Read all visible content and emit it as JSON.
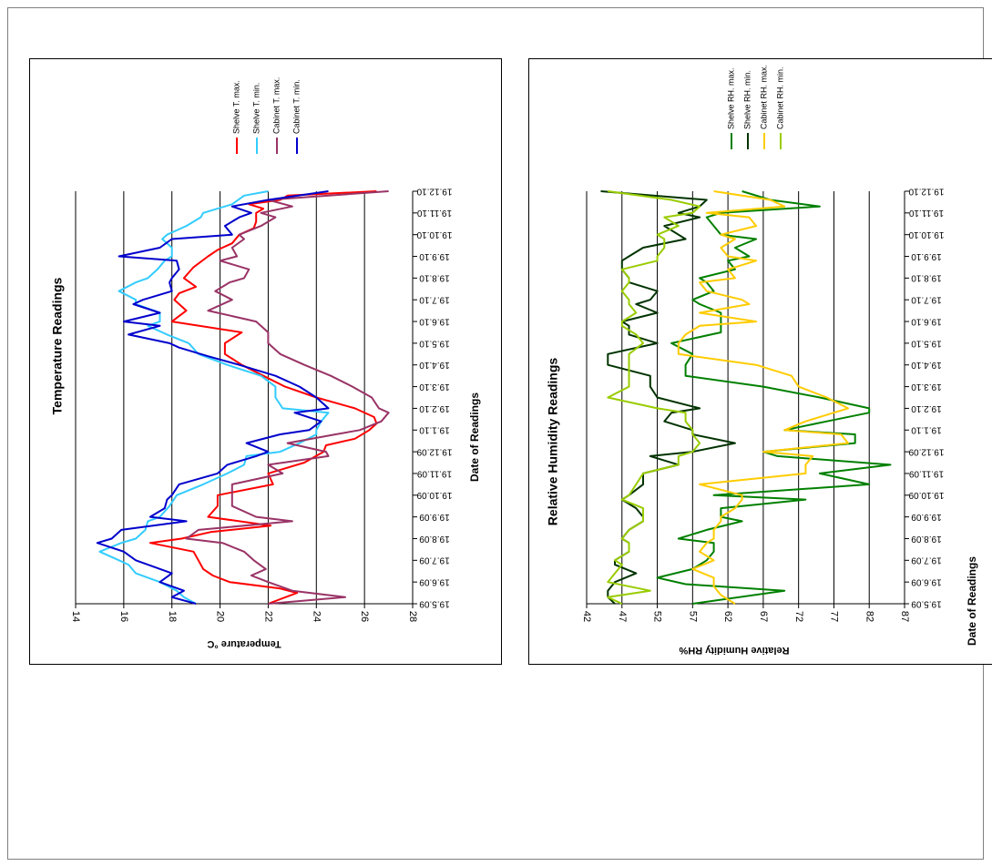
{
  "chart_data": [
    {
      "type": "line",
      "title": "Temperature Readings",
      "xlabel": "Date of Readings",
      "ylabel": "Temperature °C",
      "ylim": [
        14,
        28
      ],
      "yticks": [
        14,
        16,
        18,
        20,
        22,
        24,
        26,
        28
      ],
      "xticks": [
        "19.5.09",
        "19.6.09",
        "19.7.09",
        "19.8.09",
        "19.9.09",
        "19.10.09",
        "19.11.09",
        "19.12.09",
        "19.1.10",
        "19.2.10",
        "19.3.10",
        "19.4.10",
        "19.5.10",
        "19.6.10",
        "19.7.10",
        "19.8.10",
        "19.9.10",
        "19.10.10",
        "19.11.10",
        "19.12.10"
      ],
      "grid": "horizontal",
      "orientation": "rotated-90-clockwise",
      "legend_position": "right",
      "series": [
        {
          "name": "Shelve T. max.",
          "color": "#ff0000",
          "x": [
            0,
            0.5,
            0.7,
            1,
            1.3,
            1.6,
            2,
            2.4,
            2.8,
            3,
            3.3,
            3.6,
            4,
            4.5,
            5,
            5.5,
            6,
            6.5,
            7,
            7.3,
            7.6,
            8,
            8.3,
            8.6,
            9,
            9.5,
            10,
            10.5,
            11,
            11.5,
            12,
            12.5,
            13,
            13.5,
            14,
            14.3,
            14.6,
            15,
            15.5,
            16,
            16.3,
            16.6,
            17,
            17.3,
            17.6,
            18,
            18.2,
            18.4,
            18.6,
            18.8,
            19
          ],
          "y": [
            22,
            23.2,
            22.5,
            20.4,
            19.7,
            19.3,
            19.1,
            18.9,
            17.1,
            18.4,
            19.6,
            22.1,
            19.5,
            19.9,
            19.9,
            22.2,
            22,
            23.5,
            24.3,
            24.4,
            25.6,
            26.2,
            26.5,
            26.4,
            25.6,
            24,
            22.7,
            21.8,
            20.9,
            20.2,
            20.2,
            20.9,
            18,
            18.6,
            18.1,
            18.3,
            19,
            18.5,
            18.9,
            19.5,
            19.9,
            20.5,
            20.8,
            21.4,
            21.5,
            21.5,
            21.8,
            21.2,
            22.5,
            22.8,
            26.5
          ]
        },
        {
          "name": "Shelve T. min.",
          "color": "#33ccff",
          "x": [
            0,
            0.3,
            0.6,
            1,
            1.4,
            1.8,
            2,
            2.4,
            2.8,
            3,
            3.4,
            3.8,
            4,
            4.5,
            5,
            5.5,
            6,
            6.4,
            6.8,
            7,
            7.4,
            7.8,
            8,
            8.4,
            8.8,
            9,
            9.5,
            10,
            10.5,
            11,
            11.5,
            12,
            12.4,
            12.8,
            13,
            13.4,
            13.8,
            14,
            14.4,
            14.8,
            15,
            15.4,
            15.8,
            16,
            16.4,
            16.8,
            17,
            17.4,
            17.8,
            18,
            18.4,
            18.8,
            19
          ],
          "y": [
            19,
            18.5,
            18.2,
            17.5,
            16.5,
            16.2,
            15.8,
            15,
            15.9,
            16.5,
            16.9,
            17,
            17.5,
            17.9,
            18.2,
            19.3,
            20.3,
            21,
            21.1,
            22.5,
            23.3,
            24,
            24,
            24.2,
            24.5,
            22.6,
            22.3,
            22.3,
            21.7,
            20.3,
            19.1,
            18.7,
            17.8,
            17,
            17.5,
            17.5,
            16.5,
            16.5,
            15.8,
            16.5,
            17,
            17.4,
            17.7,
            18,
            18,
            17.6,
            17.8,
            18.6,
            19.2,
            19.3,
            20.5,
            21,
            22
          ]
        },
        {
          "name": "Cabinet T. max.",
          "color": "#993366",
          "x": [
            0,
            0.3,
            0.6,
            1,
            1.3,
            1.6,
            2,
            2.4,
            2.8,
            3,
            3.4,
            3.8,
            4,
            4.5,
            5,
            5.5,
            6,
            6.4,
            6.8,
            7,
            7.4,
            7.8,
            8,
            8.4,
            8.8,
            9,
            9.5,
            10,
            10.5,
            11,
            11.5,
            12,
            12.5,
            13,
            13.5,
            14,
            14.4,
            14.8,
            15,
            15.4,
            15.8,
            16,
            16.4,
            16.8,
            17,
            17.4,
            17.8,
            18,
            18.3,
            18.6,
            19
          ],
          "y": [
            22,
            25.2,
            23,
            22,
            21.3,
            21.9,
            21.4,
            21,
            20.1,
            18.6,
            19.1,
            23,
            21.5,
            20.5,
            20.5,
            20.5,
            22.6,
            22,
            24.5,
            24.4,
            22.8,
            24.8,
            25.8,
            26.7,
            27,
            26.6,
            26.3,
            25.5,
            24.6,
            23.5,
            22.5,
            22,
            22,
            21.5,
            19.5,
            20.5,
            19.8,
            20.4,
            21,
            21.2,
            20,
            20.7,
            20.5,
            21,
            20.8,
            21.7,
            22.3,
            21.7,
            23,
            22,
            27
          ]
        },
        {
          "name": "Cabinet T. min.",
          "color": "#0000cc",
          "x": [
            0,
            0.3,
            0.6,
            1,
            1.4,
            1.8,
            2,
            2.4,
            2.8,
            3,
            3.4,
            3.8,
            4,
            4.4,
            4.8,
            5,
            5.5,
            6,
            6.4,
            6.8,
            7,
            7.4,
            7.8,
            8,
            8.4,
            8.8,
            9,
            9.5,
            10,
            10.5,
            11,
            11.4,
            11.8,
            12,
            12.4,
            12.8,
            13,
            13.4,
            13.8,
            14,
            14.4,
            14.8,
            15,
            15.4,
            15.8,
            16,
            16.4,
            16.8,
            17,
            17.4,
            17.8,
            18,
            18.3,
            18.6,
            19
          ],
          "y": [
            19,
            18,
            18.5,
            17.5,
            18,
            17,
            16.5,
            16,
            14.9,
            15.5,
            15.9,
            18.6,
            17.1,
            17.7,
            17.8,
            18,
            18.3,
            19.9,
            20.3,
            21.5,
            22,
            21.1,
            22.5,
            23.7,
            24.2,
            23.1,
            24.5,
            24,
            23.3,
            22.3,
            20.8,
            19.5,
            18.3,
            17.9,
            16.2,
            17.5,
            16,
            17.5,
            16.4,
            16.8,
            18,
            17.9,
            18,
            18.3,
            18.2,
            15.8,
            17.5,
            18,
            20.5,
            20.2,
            20.8,
            21.3,
            20.5,
            22,
            24.5
          ]
        }
      ]
    },
    {
      "type": "line",
      "title": "Relative Humidity Readings",
      "xlabel": "Date of Readings",
      "ylabel": "Relative Humidity RH%",
      "ylim": [
        42,
        87
      ],
      "yticks": [
        42,
        47,
        52,
        57,
        62,
        67,
        72,
        77,
        82,
        87
      ],
      "xticks": [
        "19.5.09",
        "19.6.09",
        "19.7.09",
        "19.8.09",
        "19.9.09",
        "19.10.09",
        "19.11.09",
        "19.12.09",
        "19.1.10",
        "19.2.10",
        "19.3.10",
        "19.4.10",
        "19.5.10",
        "19.6.10",
        "19.7.10",
        "19.8.10",
        "19.9.10",
        "19.10.10",
        "19.11.10",
        "19.12.10"
      ],
      "grid": "horizontal",
      "orientation": "rotated-90-clockwise",
      "legend_position": "right",
      "series": [
        {
          "name": "Shelve RH. max.",
          "color": "#008000",
          "x": [
            0,
            0.6,
            0.9,
            1.2,
            1.6,
            2,
            2.4,
            2.8,
            3,
            3.4,
            3.8,
            4,
            4.4,
            4.8,
            5,
            5.5,
            6,
            6.4,
            6.8,
            7,
            7.4,
            7.8,
            8,
            8.4,
            8.8,
            9,
            9.5,
            10,
            10.5,
            11,
            11.5,
            12,
            12.5,
            13,
            13.4,
            13.8,
            14,
            14.4,
            14.8,
            15,
            15.4,
            15.8,
            16,
            16.4,
            16.8,
            17,
            17.4,
            17.8,
            18,
            18.3,
            18.6,
            19
          ],
          "y": [
            57,
            70,
            56,
            52,
            57,
            59,
            60,
            60,
            55,
            59,
            64,
            61,
            61,
            73,
            60,
            82,
            75,
            85,
            69,
            67,
            80,
            80,
            70,
            76,
            82,
            82,
            75,
            67,
            56,
            56,
            57,
            54,
            61,
            61,
            61,
            58,
            57,
            60,
            59,
            58,
            63,
            62,
            65,
            63,
            66,
            61,
            60,
            59,
            61,
            75,
            68,
            64
          ]
        },
        {
          "name": "Shelve RH. min.",
          "color": "#003300",
          "x": [
            0,
            0.3,
            0.6,
            1,
            1.4,
            1.8,
            2,
            2.4,
            2.8,
            3,
            3.4,
            3.8,
            4,
            4.4,
            4.8,
            5,
            5.5,
            6,
            6.4,
            6.8,
            7,
            7.4,
            7.8,
            8,
            8.4,
            8.8,
            9,
            9.5,
            10,
            10.5,
            11,
            11.5,
            12,
            12.4,
            12.8,
            13,
            13.4,
            13.8,
            14,
            14.4,
            14.8,
            15,
            15.4,
            15.8,
            16,
            16.4,
            16.8,
            17,
            17.4,
            17.8,
            18,
            18.3,
            18.6,
            19
          ],
          "y": [
            46,
            45,
            45,
            46,
            49,
            46,
            46,
            48,
            48,
            47,
            48,
            50,
            50,
            49,
            47,
            48,
            50,
            50,
            55,
            51,
            57,
            63,
            57,
            57,
            53,
            54,
            58,
            52,
            51,
            51,
            45,
            45,
            52,
            48,
            48,
            47,
            52,
            49,
            51,
            52,
            48,
            48,
            47,
            47,
            48,
            50,
            56,
            55,
            53,
            58,
            55,
            58,
            59,
            44
          ]
        },
        {
          "name": "Cabinet RH. max.",
          "color": "#ffcc00",
          "x": [
            0,
            0.4,
            0.8,
            1.2,
            1.6,
            2,
            2.4,
            2.8,
            3,
            3.4,
            3.8,
            4,
            4.4,
            4.8,
            5,
            5.5,
            6,
            6.4,
            6.8,
            7,
            7.4,
            7.8,
            8,
            8.4,
            8.8,
            9,
            9.5,
            10,
            10.5,
            11,
            11.5,
            12,
            12.4,
            12.8,
            13,
            13.4,
            13.8,
            14,
            14.4,
            14.8,
            15,
            15.4,
            15.8,
            16,
            16.4,
            16.8,
            17,
            17.4,
            17.8,
            18,
            18.3,
            18.6,
            19
          ],
          "y": [
            63,
            61,
            60,
            60,
            57,
            60,
            58,
            59,
            60,
            60,
            61,
            61,
            63,
            64,
            64,
            58,
            73,
            73,
            74,
            67,
            79,
            78,
            70,
            73,
            77,
            79,
            76,
            72,
            71,
            66,
            55,
            55,
            56,
            58,
            66,
            58,
            65,
            64,
            59,
            58,
            63,
            62,
            66,
            62,
            61,
            63,
            61,
            66,
            65,
            59,
            70,
            68,
            60
          ]
        },
        {
          "name": "Cabinet RH. min.",
          "color": "#99cc00",
          "x": [
            0,
            0.3,
            0.6,
            1,
            1.4,
            1.8,
            2,
            2.4,
            2.8,
            3,
            3.4,
            3.8,
            4,
            4.4,
            4.8,
            5,
            5.5,
            6,
            6.4,
            6.8,
            7,
            7.4,
            7.8,
            8,
            8.4,
            8.8,
            9,
            9.5,
            10,
            10.5,
            11,
            11.5,
            12,
            12.4,
            12.8,
            13,
            13.4,
            13.8,
            14,
            14.4,
            14.8,
            15,
            15.4,
            15.8,
            16,
            16.4,
            16.8,
            17,
            17.4,
            17.8,
            18,
            18.3,
            18.6,
            19
          ],
          "y": [
            47,
            45,
            51,
            45,
            46,
            47,
            46,
            48,
            48,
            47,
            48,
            50,
            50,
            50,
            47,
            48,
            49,
            50,
            55,
            55,
            57,
            58,
            57,
            57,
            56,
            56,
            52,
            45,
            48,
            48,
            48,
            48,
            50,
            49,
            47,
            47,
            49,
            48,
            48,
            47,
            48,
            48,
            47,
            52,
            52,
            53,
            53,
            52,
            55,
            53,
            57,
            58,
            54,
            45
          ]
        }
      ]
    }
  ]
}
